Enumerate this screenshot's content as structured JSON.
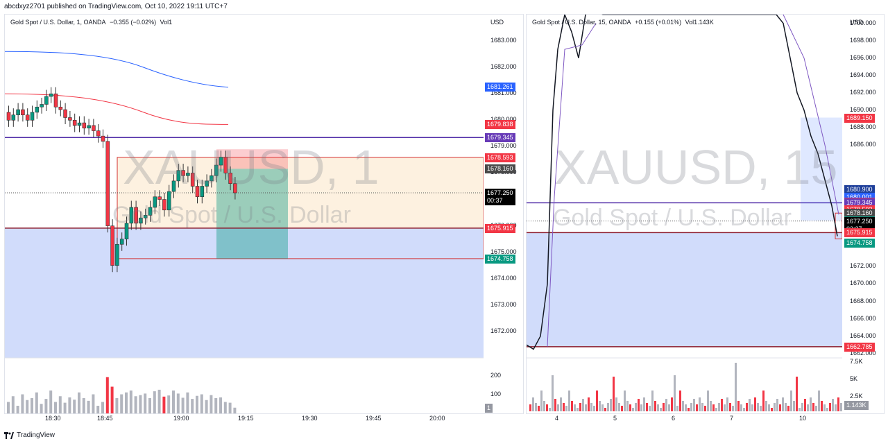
{
  "header": {
    "published": "abcdxyz2701 published on TradingView.com, Oct 10, 2022 19:11 UTC+7"
  },
  "footer": {
    "brand": "TradingView"
  },
  "left": {
    "legend": {
      "name": "Gold Spot / U.S. Dollar, 1, OANDA",
      "change": "−0.355 (−0.02%)",
      "vol": "Vol1"
    },
    "currency": "USD",
    "watermark": "XAUUSD, 1",
    "watermark_sub": "Gold Spot / U.S. Dollar",
    "price_ticks": [
      "1683.000",
      "1682.000",
      "1681.000",
      "1680.000",
      "1679.000",
      "1678.000",
      "1676.000",
      "1675.000",
      "1674.000",
      "1673.000",
      "1672.000"
    ],
    "volume_ticks": [
      "200",
      "100"
    ],
    "volume_tag": "1",
    "time_ticks": [
      "18:30",
      "18:45",
      "19:00",
      "19:15",
      "19:30",
      "19:45",
      "20:00"
    ],
    "tags": [
      {
        "label": "1681.261",
        "color": "#2962ff"
      },
      {
        "label": "1679.838",
        "color": "#f23645"
      },
      {
        "label": "1679.345",
        "color": "#673ab7"
      },
      {
        "label": "1678.593",
        "color": "#f23645"
      },
      {
        "label": "1678.160",
        "color": "#4a4a4a"
      },
      {
        "label": "1677.250",
        "color": "#000000",
        "sub": "00:37"
      },
      {
        "label": "1675.915",
        "color": "#f23645"
      },
      {
        "label": "1674.758",
        "color": "#089981"
      }
    ]
  },
  "right": {
    "legend": {
      "name": "Gold Spot / U.S. Dollar, 15, OANDA",
      "change": "+0.155 (+0.01%)",
      "vol": "Vol1.143K"
    },
    "currency": "USD",
    "watermark": "XAUUSD, 15",
    "watermark_sub": "Gold Spot / U.S. Dollar",
    "price_ticks": [
      "1700.000",
      "1698.000",
      "1696.000",
      "1694.000",
      "1692.000",
      "1690.000",
      "1688.000",
      "1686.000",
      "1672.000",
      "1670.000",
      "1668.000",
      "1666.000",
      "1664.000",
      "1662.000"
    ],
    "volume_ticks": [
      "7.5K",
      "5K",
      "2.5K"
    ],
    "volume_tag": "1.143K",
    "time_ticks": [
      "4",
      "5",
      "6",
      "7",
      "10"
    ],
    "tags": [
      {
        "label": "1689.150",
        "color": "#f23645"
      },
      {
        "label": "1680.900",
        "color": "#1e3f9a"
      },
      {
        "label": "1680.001",
        "color": "#2962ff"
      },
      {
        "label": "1679.420",
        "color": "#f23645"
      },
      {
        "label": "1679.345",
        "color": "#673ab7"
      },
      {
        "label": "1678.593",
        "color": "#f23645"
      },
      {
        "label": "1678.160",
        "color": "#4a4a4a"
      },
      {
        "label": "1677.309",
        "color": "#089981"
      },
      {
        "label": "1677.250",
        "color": "#000000",
        "sub": "03:37"
      },
      {
        "label": "1675.915",
        "color": "#f23645"
      },
      {
        "label": "1674.758",
        "color": "#089981"
      },
      {
        "label": "1662.785",
        "color": "#f23645"
      }
    ]
  },
  "chart_data": [
    {
      "type": "candlestick",
      "title": "Gold Spot / U.S. Dollar, 1, OANDA",
      "ylim": [
        1671.0,
        1684.0
      ],
      "x": [
        "18:23",
        "18:24",
        "18:25",
        "18:26",
        "18:27",
        "18:28",
        "18:29",
        "18:30",
        "18:31",
        "18:32",
        "18:33",
        "18:34",
        "18:35",
        "18:36",
        "18:37",
        "18:38",
        "18:39",
        "18:40",
        "18:41",
        "18:42",
        "18:43",
        "18:44",
        "18:45",
        "18:46",
        "18:47",
        "18:48",
        "18:49",
        "18:50",
        "18:51",
        "18:52",
        "18:53",
        "18:54",
        "18:55",
        "18:56",
        "18:57",
        "18:58",
        "18:59",
        "19:00",
        "19:01",
        "19:02",
        "19:03",
        "19:04",
        "19:05",
        "19:06",
        "19:07",
        "19:08",
        "19:09",
        "19:10",
        "19:11"
      ],
      "open": [
        1680.3,
        1680.0,
        1680.2,
        1680.4,
        1680.2,
        1680.0,
        1680.3,
        1680.5,
        1680.6,
        1680.9,
        1681.0,
        1680.5,
        1680.4,
        1680.1,
        1680.0,
        1679.8,
        1679.9,
        1679.7,
        1679.8,
        1679.6,
        1679.4,
        1679.2,
        1676.0,
        1674.5,
        1675.3,
        1675.5,
        1676.1,
        1676.7,
        1676.1,
        1676.3,
        1676.4,
        1676.7,
        1677.1,
        1677.0,
        1676.6,
        1677.3,
        1677.7,
        1678.1,
        1677.9,
        1678.0,
        1677.5,
        1677.1,
        1677.5,
        1677.7,
        1677.9,
        1678.3,
        1678.6,
        1678.0,
        1677.6
      ],
      "close": [
        1680.0,
        1680.2,
        1680.4,
        1680.2,
        1680.0,
        1680.3,
        1680.5,
        1680.6,
        1680.9,
        1681.0,
        1680.5,
        1680.4,
        1680.1,
        1680.0,
        1679.8,
        1679.9,
        1679.7,
        1679.8,
        1679.6,
        1679.4,
        1679.2,
        1676.0,
        1674.5,
        1675.3,
        1675.5,
        1676.1,
        1676.7,
        1676.1,
        1676.3,
        1676.4,
        1676.7,
        1677.1,
        1677.0,
        1676.6,
        1677.3,
        1677.7,
        1678.1,
        1677.9,
        1678.0,
        1677.5,
        1677.1,
        1677.5,
        1677.7,
        1677.9,
        1678.3,
        1678.6,
        1678.0,
        1677.6,
        1677.25
      ]
    },
    {
      "type": "candlestick",
      "title": "Gold Spot / U.S. Dollar, 15, OANDA",
      "ylim": [
        1661.5,
        1701.0
      ],
      "x": [
        "4",
        "5",
        "6",
        "7",
        "10"
      ],
      "levels": [
        1689.15,
        1680.9,
        1680.001,
        1679.42,
        1679.345,
        1678.593,
        1678.16,
        1677.309,
        1677.25,
        1675.915,
        1674.758,
        1662.785
      ]
    }
  ]
}
